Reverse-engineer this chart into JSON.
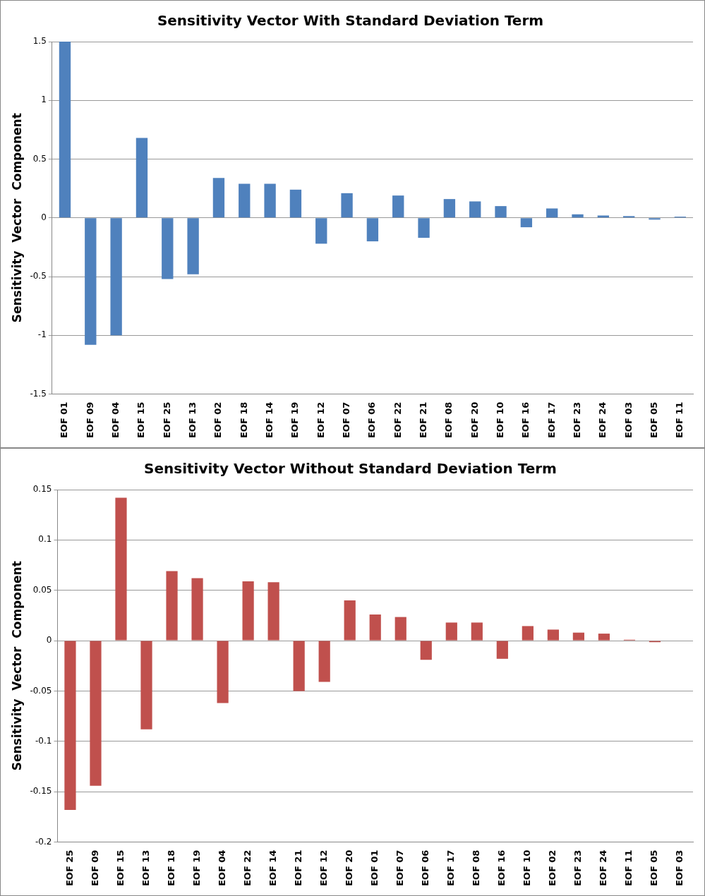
{
  "chart_data": [
    {
      "type": "bar",
      "title": "Sensitivity Vector With Standard Deviation Term",
      "ylabel": "Sensitivity  Vector  Component",
      "categories": [
        "EOF 01",
        "EOF 09",
        "EOF 04",
        "EOF 15",
        "EOF 25",
        "EOF 13",
        "EOF 02",
        "EOF 18",
        "EOF 14",
        "EOF 19",
        "EOF 12",
        "EOF 07",
        "EOF 06",
        "EOF 22",
        "EOF 21",
        "EOF 08",
        "EOF 20",
        "EOF 10",
        "EOF 16",
        "EOF 17",
        "EOF 23",
        "EOF 24",
        "EOF 03",
        "EOF 05",
        "EOF 11"
      ],
      "values": [
        1.5,
        -1.08,
        -1.0,
        0.68,
        -0.52,
        -0.48,
        0.34,
        0.29,
        0.29,
        0.24,
        -0.22,
        0.21,
        -0.2,
        0.19,
        -0.17,
        0.16,
        0.14,
        0.1,
        -0.08,
        0.08,
        0.03,
        0.02,
        0.015,
        -0.015,
        0.01
      ],
      "color": "#4f81bd",
      "ylim": [
        -1.5,
        1.5
      ],
      "yticks": [
        -1.5,
        -1,
        -0.5,
        0,
        0.5,
        1,
        1.5
      ],
      "grid": "y"
    },
    {
      "type": "bar",
      "title": "Sensitivity Vector Without Standard Deviation Term",
      "ylabel": "Sensitivity  Vector  Component",
      "categories": [
        "EOF 25",
        "EOF 09",
        "EOF 15",
        "EOF 13",
        "EOF 18",
        "EOF 19",
        "EOF 04",
        "EOF 22",
        "EOF 14",
        "EOF 21",
        "EOF 12",
        "EOF 20",
        "EOF 01",
        "EOF 07",
        "EOF 06",
        "EOF 17",
        "EOF 08",
        "EOF 16",
        "EOF 10",
        "EOF 02",
        "EOF 23",
        "EOF 24",
        "EOF 11",
        "EOF 05",
        "EOF 03"
      ],
      "values": [
        -0.168,
        -0.144,
        0.142,
        -0.088,
        0.069,
        0.062,
        -0.062,
        0.059,
        0.058,
        -0.05,
        -0.041,
        0.04,
        0.026,
        0.0235,
        -0.019,
        0.018,
        0.018,
        -0.018,
        0.0145,
        0.011,
        0.008,
        0.007,
        0.001,
        -0.0015,
        0
      ],
      "color": "#c0504d",
      "ylim": [
        -0.2,
        0.15
      ],
      "yticks": [
        -0.2,
        -0.15,
        -0.1,
        -0.05,
        0,
        0.05,
        0.1,
        0.15
      ],
      "grid": "y"
    }
  ]
}
